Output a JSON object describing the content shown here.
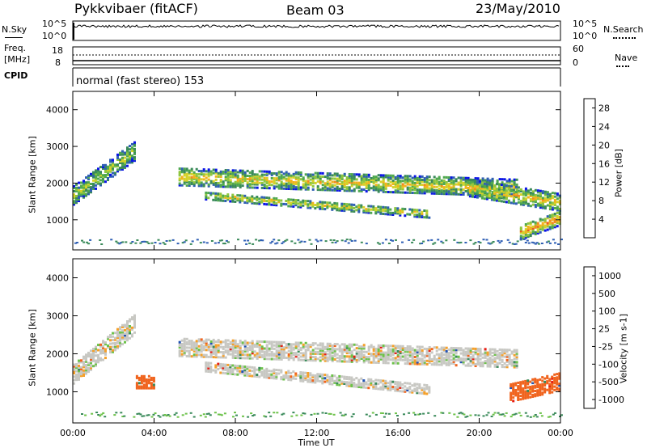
{
  "header": {
    "station": "Pykkvibaer (fitACF)",
    "beam": "Beam 03",
    "date": "23/May/2010"
  },
  "side_labels": {
    "nsky": "N.Sky",
    "freq_line1": "Freq.",
    "freq_line2": "[MHz]",
    "cpid": "CPID",
    "nsearch": "N.Search",
    "nave": "Nave"
  },
  "small_panel_ticks": {
    "nsky_left": [
      "10^5",
      "10^0"
    ],
    "nsearch_right": [
      "10^5",
      "10^0"
    ],
    "freq_left": [
      "18",
      "8"
    ],
    "nave_right": [
      "60",
      "0"
    ]
  },
  "cpid_text": "normal (fast stereo) 153",
  "colors": {
    "power": [
      "#0a14e6",
      "#2f5fb4",
      "#3a8a5a",
      "#4fa84f",
      "#8ec63f",
      "#d4d22a",
      "#f2b21c",
      "#f08a1e",
      "#ec5a1e",
      "#e61e14"
    ],
    "velocity": [
      "#e61e14",
      "#f0641e",
      "#f5a02a",
      "#c8c8c3",
      "#c8c8c3",
      "#6dc24a",
      "#3a8a5a",
      "#2050b4"
    ]
  },
  "chart_data": [
    {
      "type": "heatmap",
      "title": "",
      "xlabel": "",
      "ylabel": "Slant Range [km]",
      "x_ticks": [
        "00:00",
        "04:00",
        "08:00",
        "12:00",
        "16:00",
        "20:00",
        "00:00"
      ],
      "y_ticks": [
        1000,
        2000,
        3000,
        4000
      ],
      "xlim_hours": [
        0,
        24
      ],
      "ylim_km": [
        180,
        4500
      ],
      "colorbar": {
        "label": "Power [dB]",
        "ticks": [
          4,
          8,
          12,
          16,
          20,
          24,
          28
        ],
        "range": [
          0,
          30
        ]
      },
      "echo_bands": [
        {
          "t": [
            0,
            3.0
          ],
          "r_center_start": 1700,
          "r_center_end": 2900,
          "width": 500,
          "level": 14
        },
        {
          "t": [
            5.2,
            21.8
          ],
          "r_center_start": 2200,
          "r_center_end": 1900,
          "width": 450,
          "level": 18
        },
        {
          "t": [
            6.5,
            17.5
          ],
          "r_center_start": 1700,
          "r_center_end": 1200,
          "width": 220,
          "level": 17
        },
        {
          "t": [
            19.5,
            24
          ],
          "r_center_start": 1900,
          "r_center_end": 1500,
          "width": 450,
          "level": 19
        },
        {
          "t": [
            22.0,
            24
          ],
          "r_center_start": 700,
          "r_center_end": 1100,
          "width": 400,
          "level": 22
        }
      ]
    },
    {
      "type": "heatmap",
      "title": "",
      "xlabel": "Time UT",
      "ylabel": "Slant Range [km]",
      "x_ticks": [
        "00:00",
        "04:00",
        "08:00",
        "12:00",
        "16:00",
        "20:00",
        "00:00"
      ],
      "y_ticks": [
        1000,
        2000,
        3000,
        4000
      ],
      "xlim_hours": [
        0,
        24
      ],
      "ylim_km": [
        180,
        4500
      ],
      "colorbar": {
        "label": "Velocity [m s-1]",
        "ticks": [
          "-1000",
          "-500",
          "-100",
          "-25",
          "25",
          "100",
          "500",
          "1000"
        ],
        "range": [
          -1000,
          1000
        ]
      },
      "echo_bands": [
        {
          "t": [
            0,
            3.0
          ],
          "r_center_start": 1500,
          "r_center_end": 2800,
          "width": 500,
          "level": 0
        },
        {
          "t": [
            5.2,
            21.8
          ],
          "r_center_start": 2200,
          "r_center_end": 1900,
          "width": 450,
          "level": 0
        },
        {
          "t": [
            6.5,
            17.5
          ],
          "r_center_start": 1700,
          "r_center_end": 1100,
          "width": 260,
          "level": 0
        },
        {
          "t": [
            3.1,
            4.0
          ],
          "r_center_start": 1300,
          "r_center_end": 1300,
          "width": 350,
          "level": -400
        },
        {
          "t": [
            21.5,
            24
          ],
          "r_center_start": 1000,
          "r_center_end": 1300,
          "width": 450,
          "level": -300
        }
      ]
    }
  ]
}
